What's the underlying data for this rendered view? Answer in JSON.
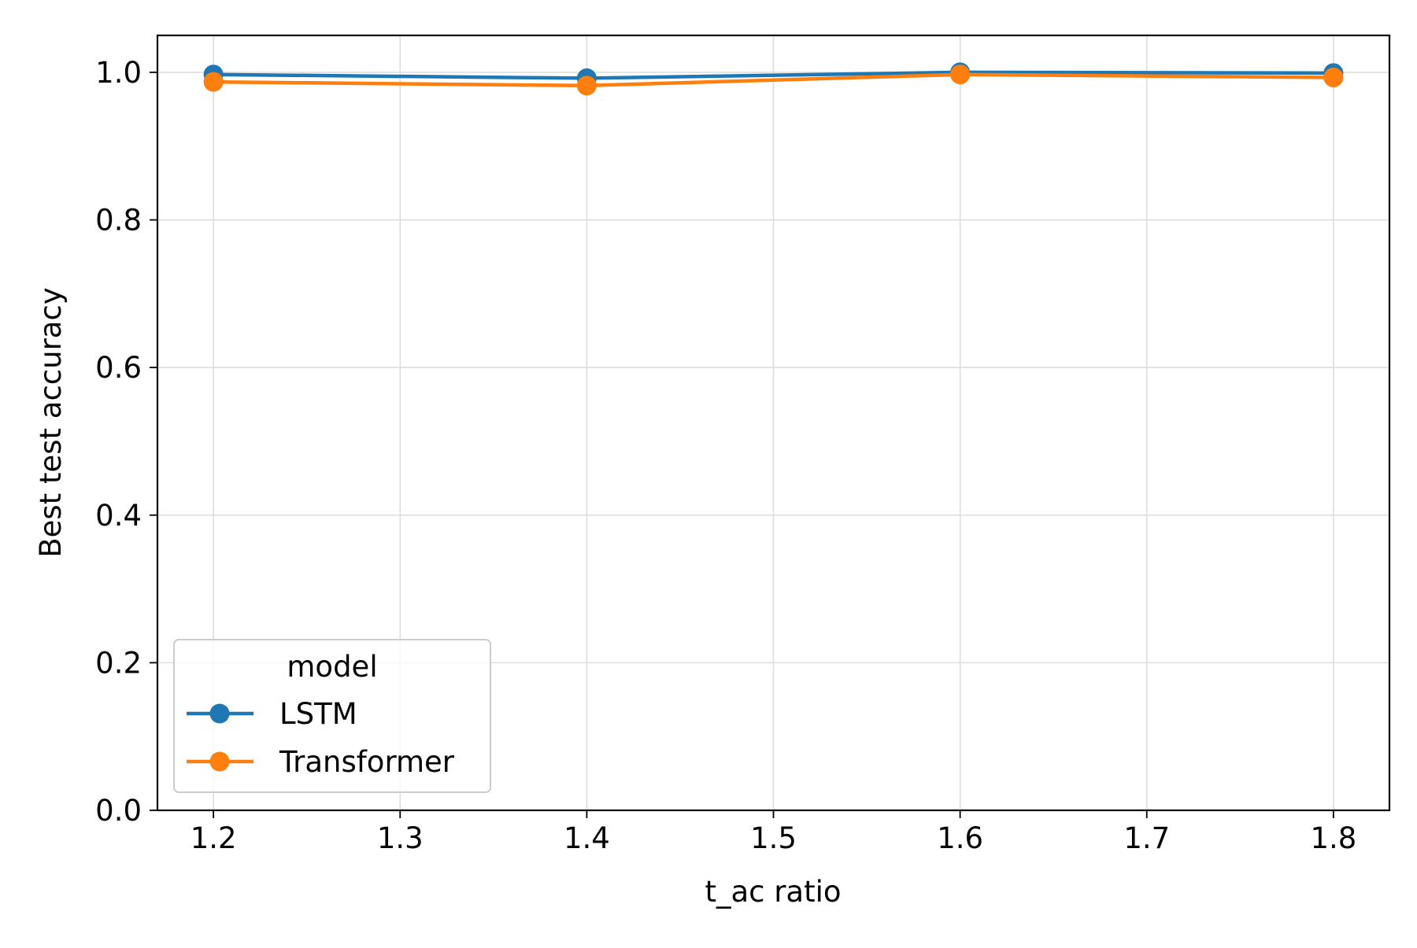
{
  "chart_data": {
    "type": "line",
    "title": "",
    "xlabel": "t_ac ratio",
    "ylabel": "Best test accuracy",
    "x": [
      1.2,
      1.4,
      1.6,
      1.8
    ],
    "xlim": [
      1.17,
      1.83
    ],
    "ylim": [
      0.0,
      1.05
    ],
    "xticks": [
      1.2,
      1.3,
      1.4,
      1.5,
      1.6,
      1.7,
      1.8
    ],
    "xtick_labels": [
      "1.2",
      "1.3",
      "1.4",
      "1.5",
      "1.6",
      "1.7",
      "1.8"
    ],
    "yticks": [
      0.0,
      0.2,
      0.4,
      0.6,
      0.8,
      1.0
    ],
    "ytick_labels": [
      "0.0",
      "0.2",
      "0.4",
      "0.6",
      "0.8",
      "1.0"
    ],
    "grid": true,
    "legend": {
      "title": "model",
      "placement": "lower-left"
    },
    "series": [
      {
        "name": "LSTM",
        "color": "#1f77b4",
        "values": [
          0.997,
          0.992,
          1.0,
          0.999
        ]
      },
      {
        "name": "Transformer",
        "color": "#ff7f0e",
        "values": [
          0.987,
          0.982,
          0.997,
          0.993
        ]
      }
    ]
  }
}
